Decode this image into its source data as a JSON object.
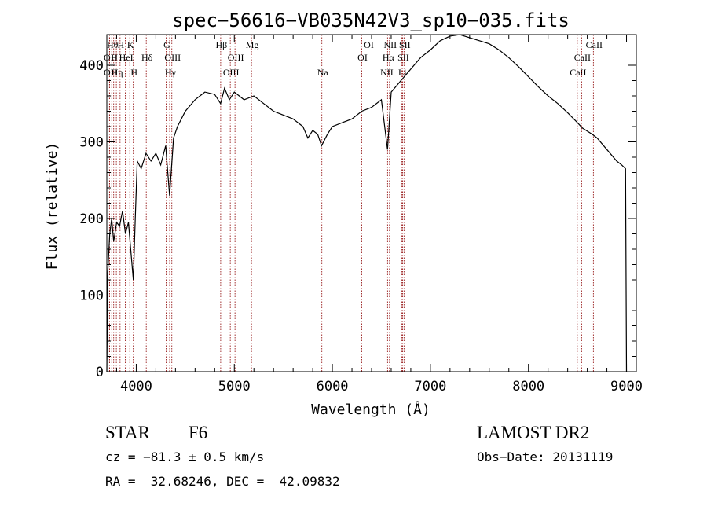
{
  "chart_data": {
    "type": "line",
    "title": "spec−56616−VB035N42V3_sp10−035.fits",
    "xlabel": "Wavelength (Å)",
    "ylabel": "Flux (relative)",
    "xlim": [
      3700,
      9100
    ],
    "ylim": [
      0,
      440
    ],
    "xticks": [
      4000,
      5000,
      6000,
      7000,
      8000,
      9000
    ],
    "yticks": [
      0,
      100,
      200,
      300,
      400
    ],
    "grid": false,
    "line_color": "#000000",
    "marker_color": "#8b0000",
    "series": [
      {
        "x": [
          3700,
          3710,
          3730,
          3750,
          3770,
          3800,
          3830,
          3860,
          3890,
          3920,
          3950,
          3970,
          3990,
          4010,
          4050,
          4100,
          4150,
          4200,
          4250,
          4300,
          4340,
          4380,
          4420,
          4500,
          4600,
          4700,
          4800,
          4860,
          4900,
          4950,
          5000,
          5100,
          5200,
          5300,
          5400,
          5500,
          5600,
          5700,
          5750,
          5800,
          5850,
          5890,
          5950,
          6000,
          6100,
          6200,
          6300,
          6400,
          6500,
          6563,
          6600,
          6700,
          6800,
          6900,
          7000,
          7100,
          7200,
          7300,
          7400,
          7500,
          7600,
          7700,
          7800,
          7900,
          8000,
          8100,
          8200,
          8300,
          8400,
          8500,
          8550,
          8600,
          8650,
          8700,
          8800,
          8900,
          8950,
          8990,
          9000
        ],
        "y": [
          0,
          130,
          180,
          200,
          170,
          195,
          190,
          210,
          180,
          195,
          150,
          120,
          200,
          275,
          265,
          285,
          275,
          285,
          270,
          295,
          230,
          305,
          320,
          340,
          355,
          365,
          362,
          350,
          370,
          355,
          365,
          355,
          360,
          350,
          340,
          335,
          330,
          320,
          305,
          315,
          310,
          295,
          310,
          320,
          325,
          330,
          340,
          345,
          355,
          290,
          365,
          380,
          395,
          410,
          420,
          432,
          438,
          440,
          436,
          432,
          428,
          420,
          410,
          398,
          385,
          372,
          360,
          350,
          338,
          325,
          318,
          314,
          310,
          305,
          290,
          275,
          270,
          265,
          0
        ]
      }
    ],
    "line_markers": [
      {
        "x": 3727,
        "label": "OII",
        "row": 2
      },
      {
        "x": 3727,
        "label": "OII",
        "row": 3
      },
      {
        "x": 3750,
        "label": "Hθ",
        "row": 1
      },
      {
        "x": 3770,
        "label": "H",
        "row": 2
      },
      {
        "x": 3797,
        "label": "Hη",
        "row": 3
      },
      {
        "x": 3835,
        "label": "H",
        "row": 1
      },
      {
        "x": 3889,
        "label": "HeI",
        "row": 2
      },
      {
        "x": 3934,
        "label": "K",
        "row": 1
      },
      {
        "x": 3970,
        "label": "H",
        "row": 3
      },
      {
        "x": 4102,
        "label": "Hδ",
        "row": 2
      },
      {
        "x": 4305,
        "label": "G",
        "row": 1
      },
      {
        "x": 4341,
        "label": "Hγ",
        "row": 3
      },
      {
        "x": 4363,
        "label": "OIII",
        "row": 2
      },
      {
        "x": 4861,
        "label": "Hβ",
        "row": 1
      },
      {
        "x": 4959,
        "label": "OIII",
        "row": 3
      },
      {
        "x": 5007,
        "label": "OIII",
        "row": 2
      },
      {
        "x": 5175,
        "label": "Mg",
        "row": 1
      },
      {
        "x": 5893,
        "label": "Na",
        "row": 3
      },
      {
        "x": 6300,
        "label": "OI",
        "row": 2
      },
      {
        "x": 6364,
        "label": "OI",
        "row": 1
      },
      {
        "x": 6548,
        "label": "NII",
        "row": 3
      },
      {
        "x": 6563,
        "label": "Hα",
        "row": 2
      },
      {
        "x": 6583,
        "label": "NII",
        "row": 1
      },
      {
        "x": 6707,
        "label": "Li",
        "row": 3
      },
      {
        "x": 6716,
        "label": "SII",
        "row": 2
      },
      {
        "x": 6731,
        "label": "SII",
        "row": 1
      },
      {
        "x": 8498,
        "label": "CaII",
        "row": 3
      },
      {
        "x": 8542,
        "label": "CaII",
        "row": 2
      },
      {
        "x": 8662,
        "label": "CaII",
        "row": 1
      }
    ]
  },
  "info": {
    "object_class": "STAR",
    "subclass": "F6",
    "survey": "LAMOST DR2",
    "redshift": "cz = −81.3 ± 0.5 km/s",
    "obs_date": "Obs−Date: 20131119",
    "coords": "RA =  32.68246, DEC =  42.09832"
  }
}
